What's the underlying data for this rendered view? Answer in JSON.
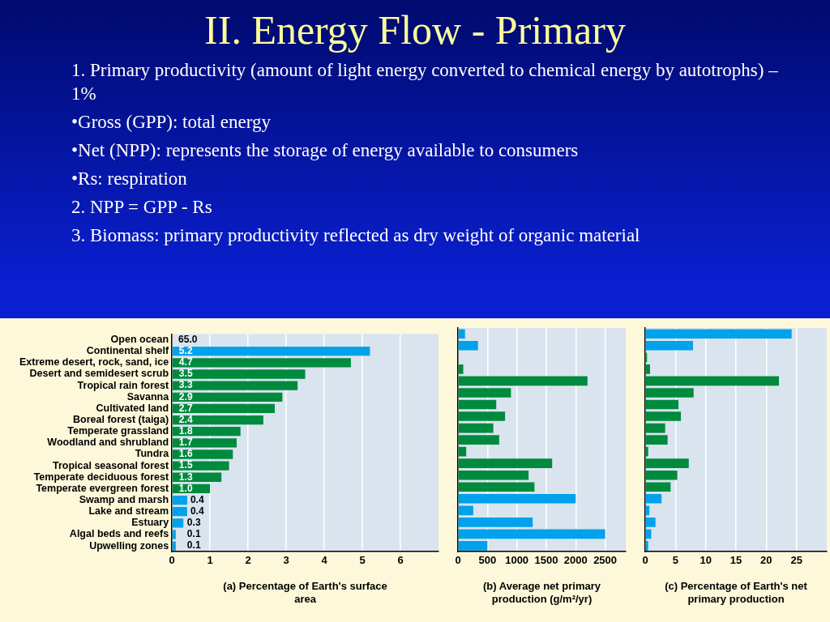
{
  "chart_data": [
    {
      "type": "bar",
      "orientation": "horizontal",
      "title": "II.  Energy Flow - Primary",
      "annotations": [
        "1. Primary productivity (amount of light energy converted to chemical energy by autotrophs) – 1%",
        "•Gross (GPP): total energy",
        "•Net (NPP): represents the storage of energy available to consumers",
        "•Rs: respiration",
        "2. NPP = GPP - Rs",
        "3. Biomass: primary productivity reflected as dry weight of organic material"
      ],
      "xlabel": "(a) Percentage of Earth's surface area",
      "categories": [
        "Open ocean",
        "Continental shelf",
        "Extreme desert, rock, sand, ice",
        "Desert and semidesert scrub",
        "Tropical rain forest",
        "Savanna",
        "Cultivated land",
        "Boreal forest (taiga)",
        "Temperate grassland",
        "Woodland and shrubland",
        "Tundra",
        "Tropical seasonal forest",
        "Temperate deciduous forest",
        "Temperate evergreen forest",
        "Swamp and marsh",
        "Lake and stream",
        "Estuary",
        "Algal beds and reefs",
        "Upwelling zones"
      ],
      "values": [
        null,
        5.2,
        4.7,
        3.5,
        3.3,
        2.9,
        2.7,
        2.4,
        1.8,
        1.7,
        1.6,
        1.5,
        1.3,
        1.0,
        0.4,
        0.4,
        0.3,
        0.1,
        0.1
      ],
      "value_labels": [
        "65.0",
        "5.2",
        "4.7",
        "3.5",
        "3.3",
        "2.9",
        "2.7",
        "2.4",
        "1.8",
        "1.7",
        "1.6",
        "1.5",
        "1.3",
        "1.0",
        "0.4",
        "0.4",
        "0.3",
        "0.1",
        "0.1"
      ],
      "colors": [
        "#00a2ec",
        "#00a2ec",
        "#008a3e",
        "#008a3e",
        "#008a3e",
        "#008a3e",
        "#008a3e",
        "#008a3e",
        "#008a3e",
        "#008a3e",
        "#008a3e",
        "#008a3e",
        "#008a3e",
        "#008a3e",
        "#00a2ec",
        "#00a2ec",
        "#00a2ec",
        "#00a2ec",
        "#00a2ec"
      ],
      "xlim": [
        0,
        7
      ],
      "xticks": [
        0,
        1,
        2,
        3,
        4,
        5,
        6
      ],
      "grid": "x"
    },
    {
      "type": "bar",
      "orientation": "horizontal",
      "xlabel": "(b) Average net primary production (g/m²/yr)",
      "categories": [
        null,
        null,
        null,
        null,
        null,
        null,
        null,
        null,
        null,
        null,
        null,
        null,
        null,
        null,
        null,
        null,
        null,
        null,
        null
      ],
      "values": [
        120,
        340,
        null,
        90,
        2200,
        900,
        650,
        800,
        600,
        700,
        140,
        1600,
        1200,
        1300,
        2000,
        260,
        1270,
        2500,
        500
      ],
      "colors": [
        "#00a2ec",
        "#00a2ec",
        "#008a3e",
        "#008a3e",
        "#008a3e",
        "#008a3e",
        "#008a3e",
        "#008a3e",
        "#008a3e",
        "#008a3e",
        "#008a3e",
        "#008a3e",
        "#008a3e",
        "#008a3e",
        "#00a2ec",
        "#00a2ec",
        "#00a2ec",
        "#00a2ec",
        "#00a2ec"
      ],
      "xlim": [
        0,
        2850
      ],
      "xticks": [
        0,
        500,
        1000,
        1500,
        2000,
        2500
      ],
      "grid": "x",
      "tick_labels": "x"
    },
    {
      "type": "bar",
      "orientation": "horizontal",
      "xlabel": "(c) Percentage of Earth's net primary production",
      "categories": [
        null,
        null,
        null,
        null,
        null,
        null,
        null,
        null,
        null,
        null,
        null,
        null,
        null,
        null,
        null,
        null,
        null,
        null,
        null
      ],
      "values": [
        24.2,
        7.9,
        0.3,
        0.8,
        22.1,
        8.0,
        5.5,
        5.9,
        3.3,
        3.7,
        0.5,
        7.2,
        5.3,
        4.2,
        2.7,
        0.7,
        1.7,
        1.0,
        0.5
      ],
      "colors": [
        "#00a2ec",
        "#00a2ec",
        "#008a3e",
        "#008a3e",
        "#008a3e",
        "#008a3e",
        "#008a3e",
        "#008a3e",
        "#008a3e",
        "#008a3e",
        "#008a3e",
        "#008a3e",
        "#008a3e",
        "#008a3e",
        "#00a2ec",
        "#00a2ec",
        "#00a2ec",
        "#00a2ec",
        "#00a2ec"
      ],
      "xlim": [
        0,
        30
      ],
      "xticks": [
        0,
        5,
        10,
        15,
        20,
        25
      ],
      "grid": "x",
      "tick_labels": "x"
    }
  ]
}
